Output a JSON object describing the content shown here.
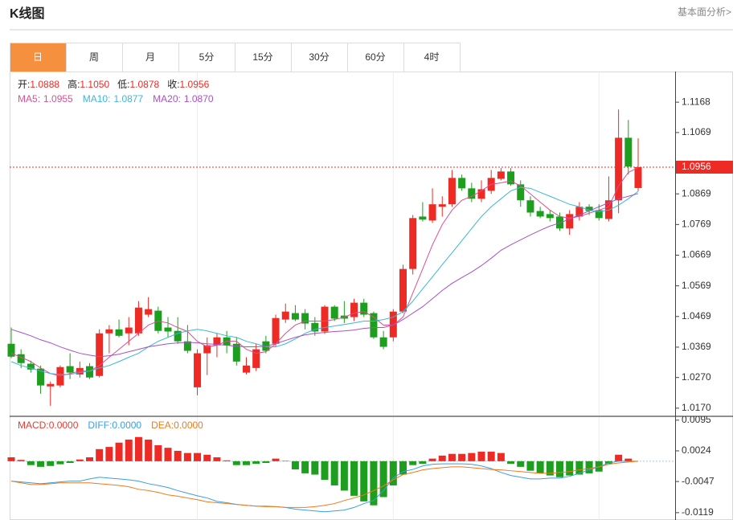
{
  "header": {
    "title": "K线图",
    "link": "基本面分析>"
  },
  "tabs": [
    "日",
    "周",
    "月",
    "5分",
    "15分",
    "30分",
    "60分",
    "4时"
  ],
  "active_tab": 0,
  "chart_data": [
    {
      "type": "candlestick",
      "label_separator": ":",
      "up_color": "#ee2a24",
      "down_color": "#1e9e1e",
      "quote": [
        {
          "label": "开",
          "value": 1.0888
        },
        {
          "label": "高",
          "value": {
            "value": 1.105,
            "label": "1.1050"
          }
        },
        {
          "label": "低",
          "value": 1.0878
        },
        {
          "label": "收",
          "value": 1.0956
        }
      ],
      "open": [
        1.038,
        1.0346,
        1.0315,
        1.0299,
        1.0241,
        1.0244,
        1.0307,
        1.028,
        1.0307,
        1.0275,
        1.0414,
        1.0427,
        1.0414,
        1.0414,
        1.0475,
        1.0488,
        1.0433,
        1.0422,
        1.0388,
        1.0238,
        1.0349,
        1.0375,
        1.0401,
        1.038,
        1.0286,
        1.0301,
        1.0388,
        1.038,
        1.0459,
        1.048,
        1.048,
        1.0448,
        1.042,
        1.0501,
        1.0472,
        1.0467,
        1.0514,
        1.048,
        1.0401,
        1.0401,
        1.0485,
        1.0624,
        1.0795,
        1.0782,
        1.0827,
        1.0835,
        1.0921,
        1.0887,
        1.0853,
        1.0879,
        1.0918,
        1.0942,
        1.09,
        1.0848,
        1.0813,
        1.0803,
        1.0795,
        1.0756,
        1.0795,
        1.0827,
        1.0816,
        1.0787,
        1.0848,
        1.1052,
        1.0888
      ],
      "high": [
        1.0433,
        1.0362,
        1.0325,
        1.0309,
        1.0257,
        1.0309,
        1.0349,
        1.0322,
        1.0317,
        1.0427,
        1.0441,
        1.0459,
        1.0467,
        1.0519,
        1.0532,
        1.0501,
        1.0467,
        1.0467,
        1.0441,
        1.0362,
        1.0401,
        1.0414,
        1.0422,
        1.0401,
        1.0336,
        1.038,
        1.0406,
        1.0475,
        1.0511,
        1.0506,
        1.0493,
        1.0467,
        1.0506,
        1.0506,
        1.0519,
        1.0527,
        1.0527,
        1.0485,
        1.0422,
        1.0493,
        1.0638,
        1.08,
        1.0842,
        1.0887,
        1.0861,
        1.0947,
        1.0932,
        1.0905,
        1.0913,
        1.0947,
        1.0953,
        1.0953,
        1.0913,
        1.0861,
        1.0827,
        1.0816,
        1.0808,
        1.0816,
        1.0842,
        1.0835,
        1.0835,
        1.0926,
        1.1144,
        1.111,
        1.105
      ],
      "low": [
        1.0333,
        1.0301,
        1.0286,
        1.0217,
        1.0178,
        1.0238,
        1.0265,
        1.027,
        1.0265,
        1.027,
        1.0349,
        1.0401,
        1.0375,
        1.0406,
        1.0467,
        1.0414,
        1.0401,
        1.038,
        1.0349,
        1.0212,
        1.0278,
        1.0336,
        1.0349,
        1.0309,
        1.028,
        1.0291,
        1.0349,
        1.037,
        1.0448,
        1.0454,
        1.0427,
        1.0406,
        1.0412,
        1.0454,
        1.0448,
        1.0454,
        1.0467,
        1.0396,
        1.0362,
        1.0388,
        1.048,
        1.0606,
        1.0779,
        1.0774,
        1.0795,
        1.0827,
        1.0879,
        1.0842,
        1.0842,
        1.0869,
        1.0913,
        1.0895,
        1.0827,
        1.0795,
        1.079,
        1.0779,
        1.0748,
        1.0735,
        1.0782,
        1.08,
        1.0782,
        1.0779,
        1.0806,
        1.0932,
        1.0878
      ],
      "close": [
        1.0338,
        1.0317,
        1.0296,
        1.0244,
        1.0249,
        1.0304,
        1.0286,
        1.0301,
        1.027,
        1.0414,
        1.0427,
        1.0406,
        1.0433,
        1.0498,
        1.0493,
        1.0422,
        1.042,
        1.0388,
        1.0357,
        1.0349,
        1.0375,
        1.0401,
        1.0375,
        1.0322,
        1.0309,
        1.0362,
        1.0357,
        1.0464,
        1.0485,
        1.0459,
        1.0446,
        1.042,
        1.0501,
        1.0462,
        1.0462,
        1.0514,
        1.0475,
        1.0401,
        1.037,
        1.0485,
        1.0624,
        1.079,
        1.0785,
        1.0835,
        1.0835,
        1.0921,
        1.0887,
        1.0853,
        1.0884,
        1.0921,
        1.0942,
        1.09,
        1.0848,
        1.0808,
        1.0795,
        1.079,
        1.0756,
        1.0803,
        1.0827,
        1.0813,
        1.079,
        1.0848,
        1.1052,
        1.0958,
        1.0956
      ],
      "series": [
        {
          "name": "MA5",
          "color": "#dd4f92",
          "legend_value": 1.0955,
          "values": [
            1.0349,
            1.0336,
            1.0322,
            1.0301,
            1.0283,
            1.0275,
            1.0283,
            1.0291,
            1.0291,
            1.0309,
            1.0336,
            1.0362,
            1.0388,
            1.0414,
            1.0441,
            1.0454,
            1.0448,
            1.0433,
            1.042,
            1.0388,
            1.037,
            1.0375,
            1.0388,
            1.0388,
            1.0362,
            1.0349,
            1.0354,
            1.038,
            1.0414,
            1.0441,
            1.0454,
            1.0454,
            1.0454,
            1.0459,
            1.0467,
            1.048,
            1.0485,
            1.0467,
            1.0441,
            1.0441,
            1.0467,
            1.0546,
            1.0624,
            1.0703,
            1.0769,
            1.0816,
            1.0848,
            1.0861,
            1.0879,
            1.09,
            1.0905,
            1.0911,
            1.0895,
            1.0869,
            1.0842,
            1.0816,
            1.0795,
            1.079,
            1.0795,
            1.0806,
            1.0816,
            1.0827,
            1.0895,
            1.0939,
            1.0955
          ]
        },
        {
          "name": "MA10",
          "color": "#3db6d8",
          "legend_value": 1.0877,
          "values": [
            1.0322,
            1.0309,
            1.0301,
            1.0291,
            1.0283,
            1.028,
            1.028,
            1.0286,
            1.0291,
            1.0301,
            1.0309,
            1.0322,
            1.0336,
            1.0349,
            1.037,
            1.0388,
            1.0401,
            1.0414,
            1.0422,
            1.0427,
            1.0422,
            1.0414,
            1.0406,
            1.0401,
            1.0388,
            1.038,
            1.037,
            1.037,
            1.038,
            1.0396,
            1.0414,
            1.0427,
            1.0433,
            1.0438,
            1.0443,
            1.0448,
            1.0454,
            1.0454,
            1.0459,
            1.0467,
            1.0485,
            1.0519,
            1.0559,
            1.0598,
            1.0638,
            1.0677,
            1.0716,
            1.0756,
            1.0795,
            1.0827,
            1.0853,
            1.0879,
            1.089,
            1.0887,
            1.0874,
            1.0861,
            1.0848,
            1.0835,
            1.0827,
            1.0816,
            1.0811,
            1.0816,
            1.0832,
            1.0853,
            1.0877
          ]
        },
        {
          "name": "MA20",
          "color": "#a552c4",
          "legend_value": {
            "value": 1.087,
            "label": "1.0870"
          },
          "values": [
            1.0427,
            1.0417,
            1.0406,
            1.0393,
            1.0383,
            1.037,
            1.0359,
            1.0349,
            1.0343,
            1.0338,
            1.0341,
            1.0346,
            1.0354,
            1.0362,
            1.037,
            1.0375,
            1.038,
            1.0383,
            1.0385,
            1.0383,
            1.038,
            1.0378,
            1.0375,
            1.0372,
            1.037,
            1.037,
            1.0372,
            1.038,
            1.0391,
            1.0401,
            1.0409,
            1.0414,
            1.0417,
            1.042,
            1.0422,
            1.0425,
            1.043,
            1.0433,
            1.0433,
            1.0441,
            1.0459,
            1.048,
            1.0501,
            1.0527,
            1.0554,
            1.0577,
            1.0596,
            1.0614,
            1.0635,
            1.0659,
            1.0685,
            1.0703,
            1.0719,
            1.0735,
            1.075,
            1.0764,
            1.0774,
            1.0787,
            1.08,
            1.0813,
            1.0827,
            1.084,
            1.0853,
            1.0861,
            1.087
          ]
        }
      ],
      "ylim": [
        1.0146,
        1.1268
      ],
      "yticks": [
        {
          "value": 1.017,
          "label": "1.0170"
        },
        {
          "value": 1.027,
          "label": "1.0270"
        },
        1.0369,
        1.0469,
        1.0569,
        1.0669,
        1.0769,
        1.0869,
        1.1069,
        1.1168
      ]
    },
    {
      "type": "macd",
      "label_separator": ":",
      "up_color": "#ee2a24",
      "down_color": "#1e9e1e",
      "series": [
        {
          "name": "MACD",
          "color": "#e83a30",
          "style": "bar",
          "legend_value": {
            "value": 0,
            "label": "0.0000"
          },
          "values": [
            0.0009,
            0.0003,
            -0.0009,
            -0.0013,
            -0.0011,
            -0.0007,
            -0.0004,
            0.0004,
            0.0009,
            0.0028,
            0.0033,
            0.0043,
            0.005,
            0.0056,
            0.005,
            0.0037,
            0.0031,
            0.0024,
            0.0019,
            0.0019,
            0.0015,
            0.0009,
            0.0002,
            -0.0009,
            -0.0009,
            -0.0006,
            -0.0004,
            0.0006,
            0.0001,
            -0.0019,
            -0.0028,
            -0.0031,
            -0.0043,
            -0.0056,
            -0.0068,
            -0.008,
            -0.0093,
            -0.0102,
            -0.0083,
            -0.0056,
            -0.0031,
            -0.0009,
            -0.0006,
            0.0006,
            0.0013,
            0.0017,
            0.0017,
            0.0019,
            0.0022,
            0.0022,
            0.0019,
            -0.0006,
            -0.0013,
            -0.0022,
            -0.0028,
            -0.0033,
            -0.0037,
            -0.0033,
            -0.0031,
            -0.0028,
            -0.0024,
            -0.0006,
            0.0015,
            0.0006,
            0
          ]
        },
        {
          "name": "DIFF",
          "color": "#3a9fe0",
          "style": "line",
          "legend_value": {
            "value": 0,
            "label": "0.0000"
          },
          "values": [
            -0.0046,
            -0.0048,
            -0.005,
            -0.0052,
            -0.005,
            -0.0048,
            -0.0046,
            -0.0046,
            -0.0041,
            -0.0037,
            -0.0039,
            -0.0041,
            -0.0043,
            -0.0046,
            -0.0052,
            -0.0056,
            -0.0061,
            -0.0068,
            -0.0074,
            -0.008,
            -0.0085,
            -0.0093,
            -0.0096,
            -0.01,
            -0.0102,
            -0.0104,
            -0.0104,
            -0.0105,
            -0.0107,
            -0.0111,
            -0.0113,
            -0.0115,
            -0.0117,
            -0.0115,
            -0.0113,
            -0.0107,
            -0.0098,
            -0.0091,
            -0.0068,
            -0.0039,
            -0.0024,
            -0.0019,
            -0.0011,
            -0.0007,
            -0.0006,
            -0.0006,
            -0.0006,
            -0.0007,
            -0.0011,
            -0.0017,
            -0.0026,
            -0.0033,
            -0.0037,
            -0.0041,
            -0.0041,
            -0.0039,
            -0.0039,
            -0.0035,
            -0.0028,
            -0.002,
            -0.0013,
            -0.0004,
            0,
            0,
            0
          ]
        },
        {
          "name": "DEA",
          "color": "#f07a1a",
          "style": "line",
          "legend_value": {
            "value": 0,
            "label": "0.0000"
          },
          "values": [
            -0.0046,
            -0.005,
            -0.0054,
            -0.0054,
            -0.0052,
            -0.005,
            -0.005,
            -0.005,
            -0.005,
            -0.0052,
            -0.0054,
            -0.0056,
            -0.0059,
            -0.0065,
            -0.0068,
            -0.0072,
            -0.0078,
            -0.0081,
            -0.0085,
            -0.0089,
            -0.0094,
            -0.0096,
            -0.0098,
            -0.01,
            -0.0102,
            -0.0104,
            -0.0105,
            -0.0105,
            -0.0107,
            -0.0107,
            -0.0107,
            -0.0105,
            -0.0102,
            -0.0098,
            -0.0091,
            -0.0085,
            -0.0078,
            -0.0068,
            -0.0057,
            -0.0043,
            -0.0031,
            -0.0026,
            -0.002,
            -0.0017,
            -0.0015,
            -0.0013,
            -0.0013,
            -0.0015,
            -0.0017,
            -0.0019,
            -0.002,
            -0.0022,
            -0.0024,
            -0.0026,
            -0.0028,
            -0.0028,
            -0.0026,
            -0.0024,
            -0.002,
            -0.0017,
            -0.0013,
            -0.0007,
            -0.0004,
            -0.0002,
            0
          ]
        }
      ],
      "ylim": [
        -0.0136,
        0.0102
      ],
      "yticks": [
        -0.0119,
        -0.0047,
        0.0024,
        0.0095
      ]
    }
  ]
}
